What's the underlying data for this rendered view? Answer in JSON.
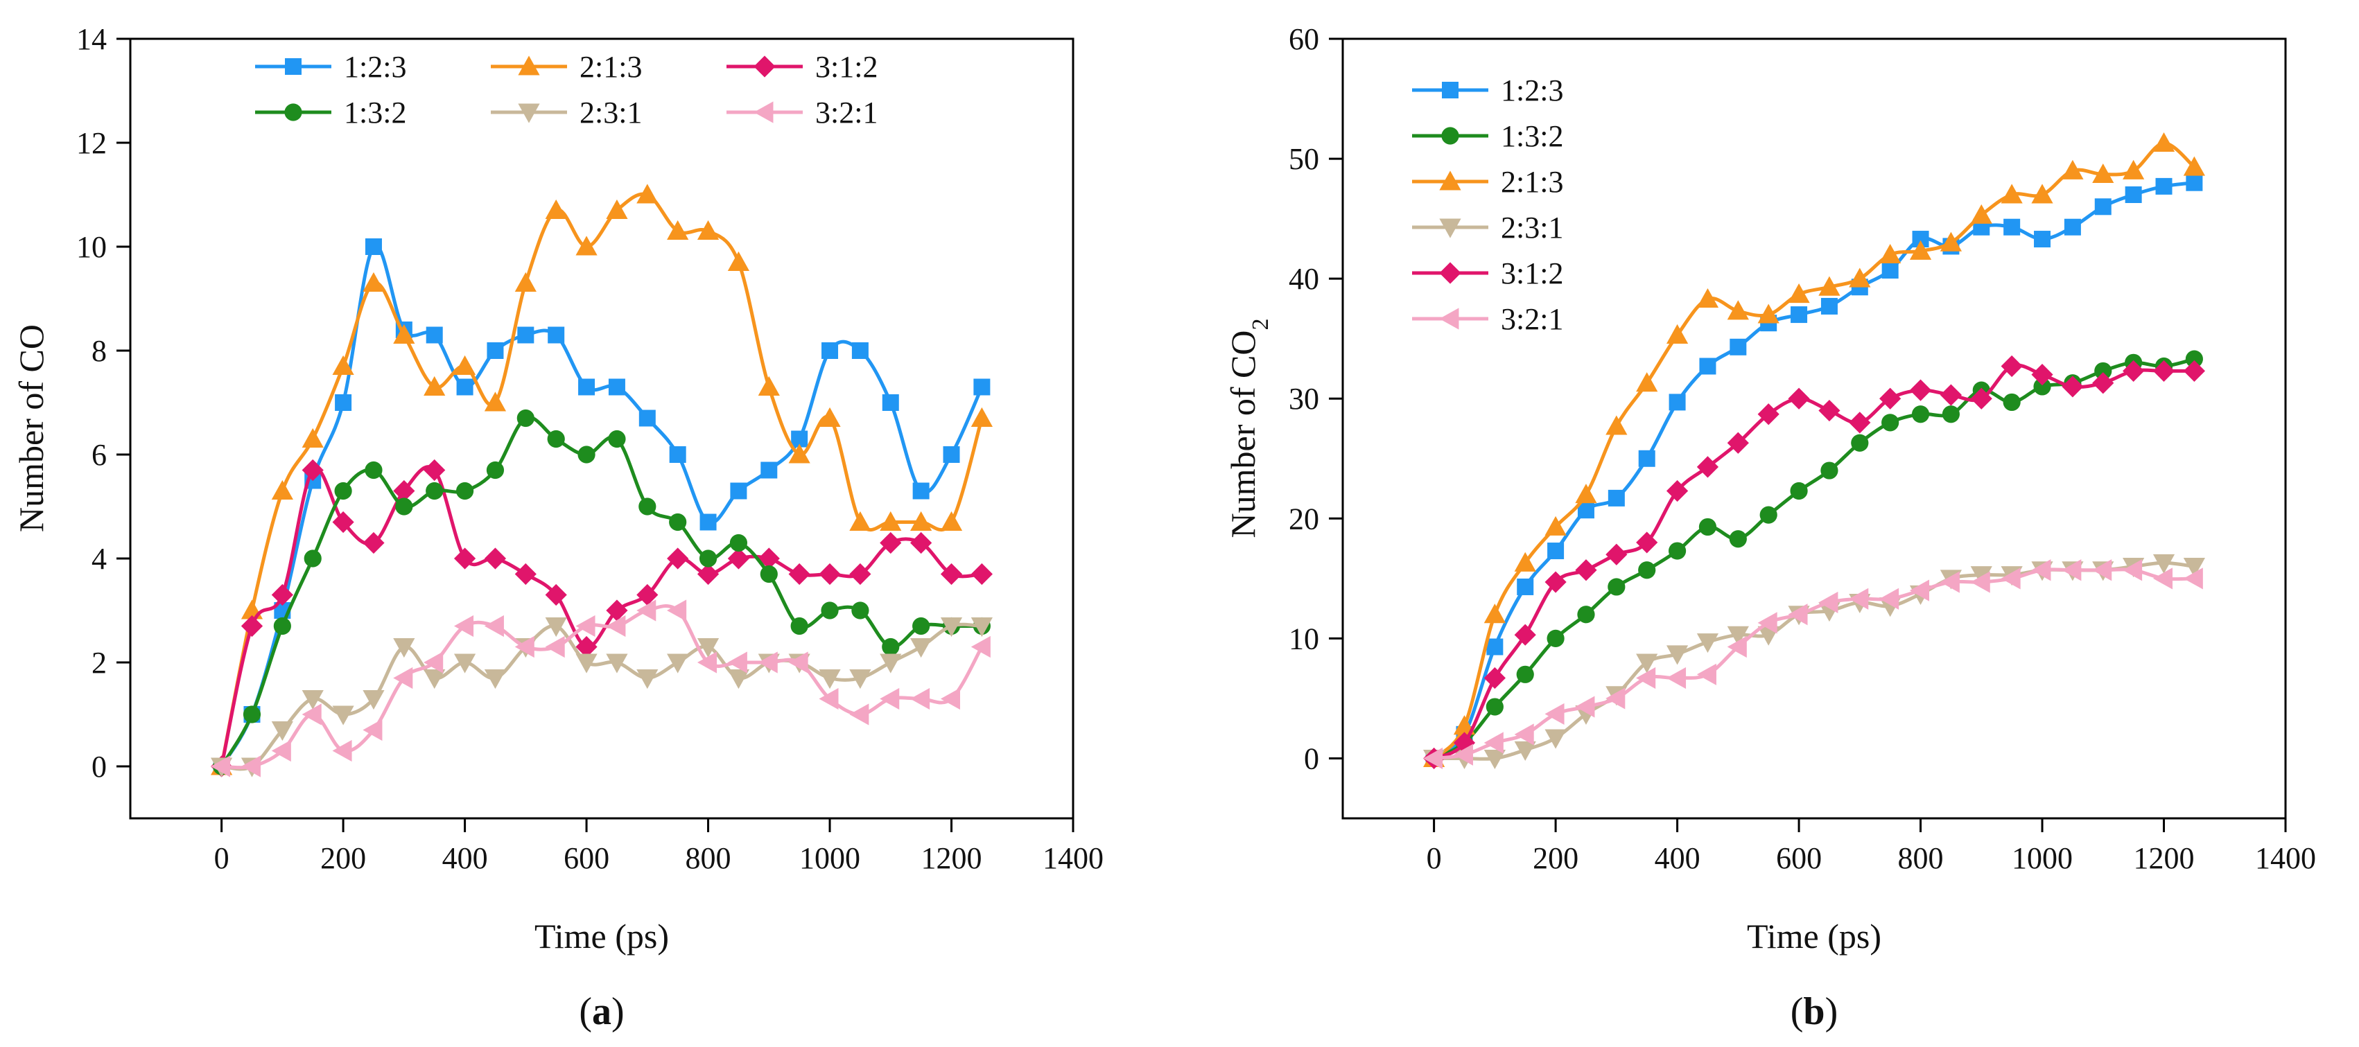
{
  "chart_data": [
    {
      "type": "line",
      "panel_label": "a",
      "xlabel": "Time (ps)",
      "ylabel": "Number of CO",
      "ylabel_sub": "",
      "xlim": [
        -150,
        1400
      ],
      "ylim": [
        -1,
        14
      ],
      "xticks": [
        0,
        200,
        400,
        600,
        800,
        1000,
        1200,
        1400
      ],
      "yticks": [
        0,
        2,
        4,
        6,
        8,
        10,
        12,
        14
      ],
      "legend_position": "top-center, 3 columns",
      "x": [
        0,
        50,
        100,
        150,
        200,
        250,
        300,
        350,
        400,
        450,
        500,
        550,
        600,
        650,
        700,
        750,
        800,
        850,
        900,
        950,
        1000,
        1050,
        1100,
        1150,
        1200,
        1250
      ],
      "series": [
        {
          "name": "1:2:3",
          "color": "#2196F3",
          "marker": "square",
          "values": [
            0,
            1,
            3,
            5.5,
            7,
            10,
            8.4,
            8.3,
            7.3,
            8,
            8.3,
            8.3,
            7.3,
            7.3,
            6.7,
            6,
            4.7,
            5.3,
            5.7,
            6.3,
            8,
            8,
            7,
            5.3,
            6,
            7.3
          ]
        },
        {
          "name": "2:1:3",
          "color": "#F7941D",
          "marker": "triangle-up",
          "values": [
            0,
            3,
            5.3,
            6.3,
            7.7,
            9.3,
            8.3,
            7.3,
            7.7,
            7,
            9.3,
            10.7,
            10,
            10.7,
            11,
            10.3,
            10.3,
            9.7,
            7.3,
            6,
            6.7,
            4.7,
            4.7,
            4.7,
            4.7,
            6.7
          ]
        },
        {
          "name": "3:1:2",
          "color": "#E0156B",
          "marker": "diamond",
          "values": [
            0,
            2.7,
            3.3,
            5.7,
            4.7,
            4.3,
            5.3,
            5.7,
            4,
            4,
            3.7,
            3.3,
            2.3,
            3,
            3.3,
            4,
            3.7,
            4,
            4,
            3.7,
            3.7,
            3.7,
            4.3,
            4.3,
            3.7,
            3.7
          ]
        },
        {
          "name": "1:3:2",
          "color": "#1E8C1E",
          "marker": "circle",
          "values": [
            0,
            1,
            2.7,
            4,
            5.3,
            5.7,
            5,
            5.3,
            5.3,
            5.7,
            6.7,
            6.3,
            6,
            6.3,
            5,
            4.7,
            4,
            4.3,
            3.7,
            2.7,
            3,
            3,
            2.3,
            2.7,
            2.7,
            2.7
          ]
        },
        {
          "name": "2:3:1",
          "color": "#C8B89A",
          "marker": "triangle-down",
          "values": [
            0,
            0,
            0.7,
            1.3,
            1,
            1.3,
            2.3,
            1.7,
            2,
            1.7,
            2.3,
            2.7,
            2,
            2,
            1.7,
            2,
            2.3,
            1.7,
            2,
            2,
            1.7,
            1.7,
            2,
            2.3,
            2.7,
            2.7
          ]
        },
        {
          "name": "3:2:1",
          "color": "#F4A6C4",
          "marker": "triangle-left",
          "values": [
            0,
            0,
            0.3,
            1,
            0.3,
            0.7,
            1.7,
            2,
            2.7,
            2.7,
            2.3,
            2.3,
            2.7,
            2.7,
            3,
            3,
            2,
            2,
            2,
            2,
            1.3,
            1,
            1.3,
            1.3,
            1.3,
            2.3
          ]
        }
      ]
    },
    {
      "type": "line",
      "panel_label": "b",
      "xlabel": "Time (ps)",
      "ylabel": "Number of CO",
      "ylabel_sub": "2",
      "xlim": [
        -150,
        1400
      ],
      "ylim": [
        -5,
        60
      ],
      "xticks": [
        0,
        200,
        400,
        600,
        800,
        1000,
        1200,
        1400
      ],
      "yticks": [
        0,
        10,
        20,
        30,
        40,
        50,
        60
      ],
      "legend_position": "top-left, 1 column",
      "x": [
        0,
        50,
        100,
        150,
        200,
        250,
        300,
        350,
        400,
        450,
        500,
        550,
        600,
        650,
        700,
        750,
        800,
        850,
        900,
        950,
        1000,
        1050,
        1100,
        1150,
        1200,
        1250
      ],
      "series": [
        {
          "name": "1:2:3",
          "color": "#2196F3",
          "marker": "square",
          "values": [
            0,
            2,
            9.3,
            14.3,
            17.3,
            20.7,
            21.7,
            25,
            29.7,
            32.7,
            34.3,
            36.3,
            37,
            37.7,
            39.3,
            40.7,
            43.3,
            42.7,
            44.3,
            44.3,
            43.3,
            44.3,
            46,
            47,
            47.7,
            48
          ]
        },
        {
          "name": "1:3:2",
          "color": "#1E8C1E",
          "marker": "circle",
          "values": [
            0,
            1.3,
            4.3,
            7,
            10,
            12,
            14.3,
            15.7,
            17.3,
            19.3,
            18.3,
            20.3,
            22.3,
            24,
            26.3,
            28,
            28.7,
            28.7,
            30.7,
            29.7,
            31,
            31.3,
            32.3,
            33,
            32.7,
            33.3
          ]
        },
        {
          "name": "2:1:3",
          "color": "#F7941D",
          "marker": "triangle-up",
          "values": [
            0,
            2.7,
            12,
            16.3,
            19.3,
            22,
            27.7,
            31.3,
            35.3,
            38.3,
            37.3,
            37,
            38.7,
            39.3,
            40,
            42,
            42.3,
            43,
            45.3,
            47,
            47,
            49,
            48.7,
            49,
            51.3,
            49.3
          ]
        },
        {
          "name": "2:3:1",
          "color": "#C8B89A",
          "marker": "triangle-down",
          "values": [
            0,
            0,
            0,
            0.7,
            1.7,
            3.7,
            5.3,
            8,
            8.7,
            9.7,
            10.3,
            10.3,
            12,
            12.3,
            13,
            12.7,
            13.7,
            15,
            15.3,
            15.3,
            15.7,
            15.7,
            15.7,
            16,
            16.3,
            16
          ]
        },
        {
          "name": "3:1:2",
          "color": "#E0156B",
          "marker": "diamond",
          "values": [
            0,
            1.3,
            6.7,
            10.3,
            14.7,
            15.7,
            17,
            18,
            22.3,
            24.3,
            26.3,
            28.7,
            30,
            29,
            28,
            30,
            30.7,
            30.3,
            30,
            32.7,
            32,
            31,
            31.3,
            32.3,
            32.3,
            32.3
          ]
        },
        {
          "name": "3:2:1",
          "color": "#F4A6C4",
          "marker": "triangle-left",
          "values": [
            0,
            0.3,
            1.3,
            2,
            3.7,
            4.3,
            5,
            6.7,
            6.7,
            7,
            9.3,
            11.3,
            12,
            13,
            13.3,
            13.3,
            14,
            14.7,
            14.7,
            15,
            15.7,
            15.7,
            15.7,
            15.7,
            15,
            15
          ]
        }
      ]
    }
  ]
}
